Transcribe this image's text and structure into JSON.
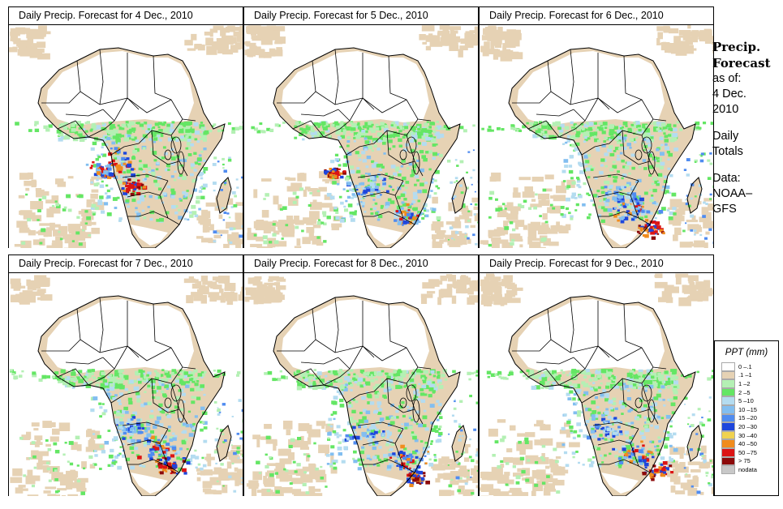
{
  "panels": [
    {
      "title": "Daily Precip. Forecast for  4 Dec., 2010",
      "day": 4
    },
    {
      "title": "Daily Precip. Forecast for  5 Dec., 2010",
      "day": 5
    },
    {
      "title": "Daily Precip. Forecast for  6 Dec., 2010",
      "day": 6
    },
    {
      "title": "Daily Precip. Forecast for  7 Dec., 2010",
      "day": 7
    },
    {
      "title": "Daily Precip. Forecast for  8 Dec., 2010",
      "day": 8
    },
    {
      "title": "Daily Precip. Forecast for  9 Dec., 2010",
      "day": 9
    }
  ],
  "info": {
    "heading1": "Precip.",
    "heading2": "Forecast",
    "asof": "as of:",
    "date1": "4 Dec.",
    "date2": "2010",
    "totals1": "Daily",
    "totals2": "Totals",
    "data_label": "Data:",
    "source1": "NOAA–",
    "source2": "GFS"
  },
  "legend": {
    "title": "PPT (mm)",
    "items": [
      {
        "label": "0 –.1",
        "color": "#ffffff"
      },
      {
        "label": ".1 –1",
        "color": "#e6d2b4"
      },
      {
        "label": "1 –2",
        "color": "#b4f0b4"
      },
      {
        "label": "2 –5",
        "color": "#64e664"
      },
      {
        "label": "5 –10",
        "color": "#b4dcf0"
      },
      {
        "label": "10 –15",
        "color": "#82bef0"
      },
      {
        "label": "15 –20",
        "color": "#508cf0"
      },
      {
        "label": "20 –30",
        "color": "#1e46dc"
      },
      {
        "label": "30 –40",
        "color": "#f0d250"
      },
      {
        "label": "40 –50",
        "color": "#f08c1e"
      },
      {
        "label": "50 –75",
        "color": "#dc1414"
      },
      {
        "label": "> 75",
        "color": "#8c0a0a"
      },
      {
        "label": "nodata",
        "color": "#c8c8c8"
      }
    ]
  }
}
